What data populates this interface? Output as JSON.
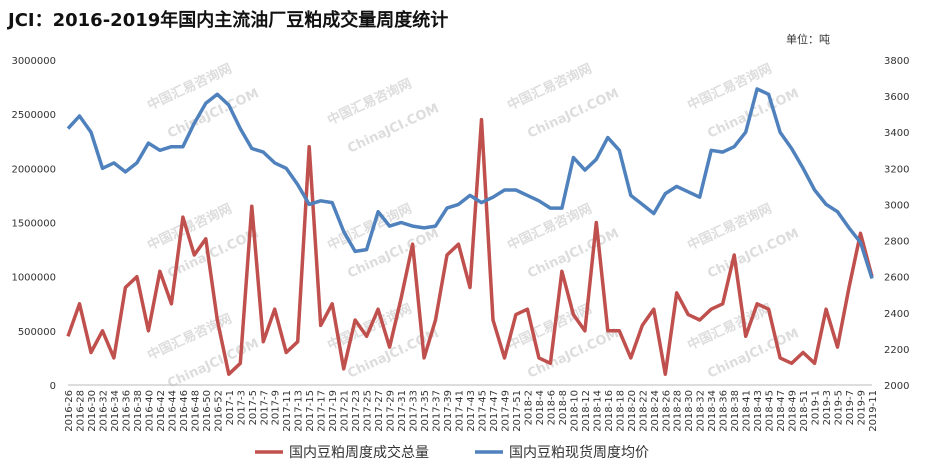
{
  "chart_data": {
    "type": "line",
    "title": "JCI：2016-2019年国内主流油厂豆粕成交量周度统计",
    "unit_label": "单位：吨",
    "watermark": [
      "中国汇易咨询网",
      "ChinaJCI.COM"
    ],
    "categories": [
      "2016-26",
      "2016-28",
      "2016-30",
      "2016-32",
      "2016-34",
      "2016-36",
      "2016-38",
      "2016-40",
      "2016-42",
      "2016-44",
      "2016-46",
      "2016-48",
      "2016-50",
      "2016-52",
      "2017-1",
      "2017-3",
      "2017-5",
      "2017-7",
      "2017-9",
      "2017-11",
      "2017-13",
      "2017-15",
      "2017-17",
      "2017-19",
      "2017-21",
      "2017-23",
      "2017-25",
      "2017-27",
      "2017-29",
      "2017-31",
      "2017-33",
      "2017-35",
      "2017-37",
      "2017-39",
      "2017-41",
      "2017-43",
      "2017-45",
      "2017-47",
      "2017-49",
      "2017-51",
      "2018-2",
      "2018-4",
      "2018-6",
      "2018-8",
      "2018-10",
      "2018-12",
      "2018-14",
      "2018-16",
      "2018-18",
      "2018-20",
      "2018-22",
      "2018-24",
      "2018-26",
      "2018-28",
      "2018-30",
      "2018-32",
      "2018-34",
      "2018-36",
      "2018-38",
      "2018-41",
      "2018-43",
      "2018-45",
      "2018-47",
      "2018-49",
      "2018-51",
      "2019-1",
      "2019-3",
      "2019-5",
      "2019-7",
      "2019-9",
      "2019-11"
    ],
    "series": [
      {
        "name": "国内豆粕周度成交总量",
        "color": "#c0504d",
        "values": [
          450000,
          750000,
          300000,
          500000,
          250000,
          900000,
          1000000,
          500000,
          1050000,
          750000,
          1550000,
          1200000,
          1350000,
          600000,
          100000,
          200000,
          1650000,
          400000,
          700000,
          300000,
          400000,
          2200000,
          550000,
          750000,
          150000,
          600000,
          450000,
          700000,
          350000,
          800000,
          1300000,
          250000,
          600000,
          1200000,
          1300000,
          900000,
          2450000,
          600000,
          250000,
          650000,
          700000,
          250000,
          200000,
          1050000,
          650000,
          500000,
          1500000,
          500000,
          500000,
          250000,
          550000,
          700000,
          100000,
          850000,
          650000,
          600000,
          700000,
          750000,
          1200000,
          450000,
          750000,
          700000,
          250000,
          200000,
          300000,
          200000,
          700000,
          350000,
          900000,
          1400000,
          1000000
        ]
      },
      {
        "name": "国内豆粕现货周度均价",
        "color": "#4f81bd",
        "axis": "y2",
        "values": [
          3420,
          3490,
          3400,
          3200,
          3230,
          3180,
          3230,
          3340,
          3300,
          3320,
          3320,
          3450,
          3560,
          3610,
          3550,
          3420,
          3310,
          3290,
          3230,
          3200,
          3110,
          3000,
          3020,
          3010,
          2850,
          2740,
          2750,
          2960,
          2880,
          2900,
          2880,
          2870,
          2880,
          2980,
          3000,
          3050,
          3010,
          3040,
          3080,
          3080,
          3050,
          3020,
          2980,
          2980,
          3260,
          3190,
          3250,
          3370,
          3300,
          3050,
          3000,
          2950,
          3060,
          3100,
          3070,
          3040,
          3300,
          3290,
          3320,
          3400,
          3640,
          3610,
          3400,
          3310,
          3200,
          3080,
          3000,
          2960,
          2870,
          2790,
          2590
        ]
      }
    ],
    "ylim": [
      0,
      3000000
    ],
    "yticks": [
      0,
      500000,
      1000000,
      1500000,
      2000000,
      2500000,
      3000000
    ],
    "y2lim": [
      2000,
      3800
    ],
    "y2ticks": [
      2000,
      2200,
      2400,
      2600,
      2800,
      3000,
      3200,
      3400,
      3600,
      3800
    ],
    "legend": "bottom",
    "grid": false
  }
}
